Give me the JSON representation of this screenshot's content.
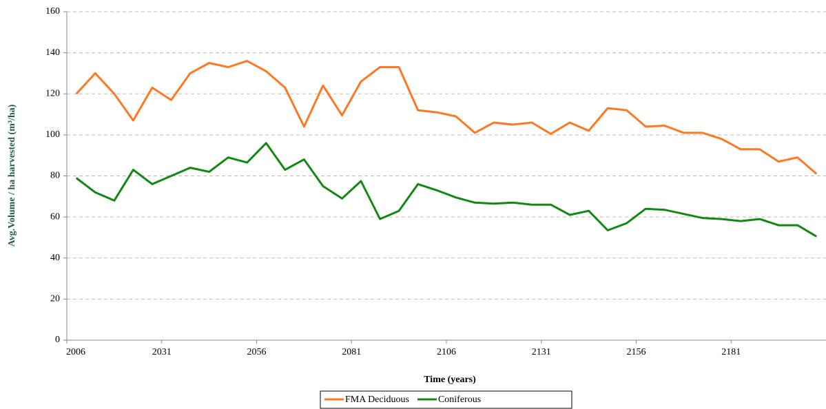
{
  "chart_data": {
    "type": "line",
    "x_label": "Time (years)",
    "y_label": "Avg.Volume / ha harvested (m³/ha)",
    "categories": [
      "2006",
      null,
      null,
      null,
      null,
      "2031",
      null,
      null,
      null,
      null,
      "2056",
      null,
      null,
      null,
      null,
      "2081",
      null,
      null,
      null,
      null,
      "2106",
      null,
      null,
      null,
      null,
      "2131",
      null,
      null,
      null,
      null,
      "2156",
      null,
      null,
      null,
      null,
      "2181",
      null,
      null,
      null,
      null
    ],
    "series": [
      {
        "name": "FMA Deciduous",
        "color": "#ff7722",
        "values": [
          120,
          130,
          120,
          107,
          123,
          117,
          130,
          135,
          133,
          136,
          131,
          123,
          104,
          124,
          109.5,
          126,
          133,
          133,
          112,
          111,
          109,
          101,
          106,
          105,
          106,
          100.5,
          106,
          102,
          113,
          112,
          104,
          104.5,
          101,
          101,
          98,
          93,
          93,
          87,
          89,
          81
        ]
      },
      {
        "name": "Coniferous",
        "color": "#118811",
        "values": [
          79,
          72,
          68,
          83,
          76,
          80,
          84,
          82,
          89,
          86.5,
          96,
          83,
          88,
          75,
          69,
          77.5,
          59,
          63,
          76,
          73,
          69.5,
          67,
          66.5,
          67,
          66,
          66,
          61,
          63,
          53.5,
          57,
          64,
          63.5,
          61.5,
          59.5,
          59,
          58,
          59,
          56,
          56,
          50.5
        ]
      }
    ],
    "ylim": [
      0,
      160
    ],
    "yticks": [
      0,
      20,
      40,
      60,
      80,
      100,
      120,
      140,
      160
    ],
    "grid": true,
    "legend": "bottom"
  }
}
